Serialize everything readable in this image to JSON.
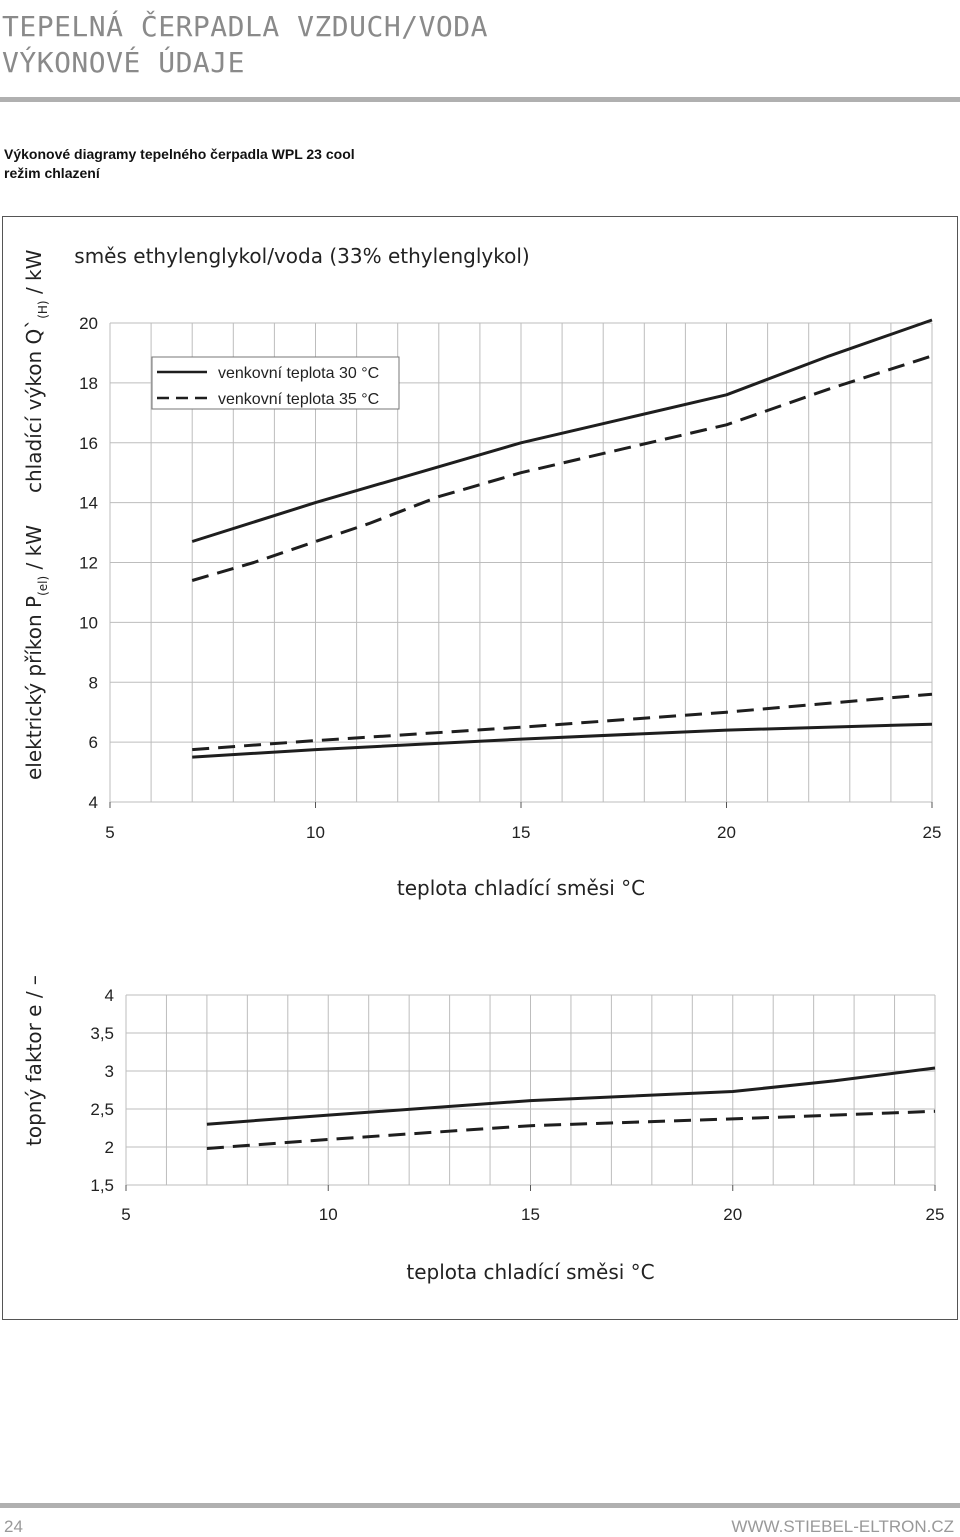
{
  "header": {
    "title_line1": "TEPELNÁ ČERPADLA VZDUCH/VODA",
    "title_line2": "VÝKONOVÉ ÚDAJE"
  },
  "subtitle": {
    "line1": "Výkonové diagramy tepelného čerpadla WPL 23 cool",
    "line2": "režim chlazení"
  },
  "footer": {
    "page_number": "24",
    "website": "WWW.STIEBEL-ELTRON.CZ"
  },
  "chart_data": [
    {
      "type": "line",
      "title": "směs ethylenglykol/voda (33% ethylenglykol)",
      "ylabel_upper": "chladící výkon Q`",
      "ylabel_upper_sub": "(H)",
      "ylabel_upper_unit": " / kW",
      "ylabel_lower": "elektrický příkon P",
      "ylabel_lower_sub": "(el)",
      "ylabel_lower_unit": " / kW",
      "xlabel": "teplota chladící směsi °C",
      "xlim": [
        5,
        25
      ],
      "ylim": [
        4,
        20
      ],
      "xticks": [
        "5",
        "10",
        "15",
        "20",
        "25"
      ],
      "yticks": [
        "4",
        "6",
        "8",
        "10",
        "12",
        "14",
        "16",
        "18",
        "20"
      ],
      "grid": true,
      "legend_position": "top-left",
      "legend": [
        {
          "label": "venkovní teplota 30 °C",
          "style": "solid"
        },
        {
          "label": "venkovní teplota 35 °C",
          "style": "dashed"
        }
      ],
      "series": [
        {
          "group": "cooling",
          "style": "solid",
          "x": [
            7,
            10,
            15,
            17.5,
            20,
            22.5,
            25
          ],
          "y": [
            12.7,
            14.0,
            16.0,
            16.8,
            17.6,
            18.9,
            20.1
          ]
        },
        {
          "group": "cooling",
          "style": "dashed",
          "x": [
            7,
            8.5,
            10,
            11.3,
            13,
            15,
            17.5,
            20,
            22.5,
            25
          ],
          "y": [
            11.4,
            12.0,
            12.7,
            13.3,
            14.2,
            15.0,
            15.8,
            16.6,
            17.8,
            18.9
          ]
        },
        {
          "group": "power",
          "style": "solid",
          "x": [
            7,
            10,
            15,
            20,
            25
          ],
          "y": [
            5.5,
            5.75,
            6.1,
            6.4,
            6.6
          ]
        },
        {
          "group": "power",
          "style": "dashed",
          "x": [
            7,
            10,
            15,
            20,
            25
          ],
          "y": [
            5.75,
            6.05,
            6.5,
            7.0,
            7.6
          ]
        }
      ]
    },
    {
      "type": "line",
      "ylabel": "topný faktor e / –",
      "xlabel": "teplota chladící směsi °C",
      "xlim": [
        5,
        25
      ],
      "ylim": [
        1.5,
        4
      ],
      "xticks": [
        "5",
        "10",
        "15",
        "20",
        "25"
      ],
      "yticks": [
        "1,5",
        "2",
        "2,5",
        "3",
        "3,5",
        "4"
      ],
      "grid": true,
      "series": [
        {
          "style": "solid",
          "x": [
            7,
            10,
            15,
            20,
            22.5,
            25
          ],
          "y": [
            2.3,
            2.42,
            2.61,
            2.73,
            2.87,
            3.04
          ]
        },
        {
          "style": "dashed",
          "x": [
            7,
            10,
            15,
            20,
            25
          ],
          "y": [
            1.98,
            2.1,
            2.28,
            2.37,
            2.47
          ]
        }
      ]
    }
  ]
}
